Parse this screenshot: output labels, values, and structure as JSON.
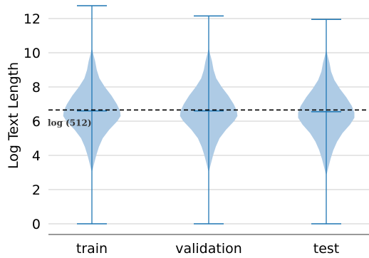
{
  "chart_data": {
    "type": "violin",
    "ylabel": "Log Text Length",
    "xlabel": "",
    "categories": [
      "train",
      "validation",
      "test"
    ],
    "ylim": [
      -0.55,
      13.0
    ],
    "yticks": [
      0,
      2,
      4,
      6,
      8,
      10,
      12
    ],
    "grid": "horizontal",
    "reference_line": {
      "value": 6.238,
      "label": "log (512)",
      "style": "dashed"
    },
    "series": [
      {
        "category": "train",
        "min": 0.0,
        "max": 12.75,
        "median": 6.6,
        "density": [
          [
            3.0,
            0.0
          ],
          [
            3.5,
            0.04
          ],
          [
            4.0,
            0.08
          ],
          [
            4.5,
            0.13
          ],
          [
            5.0,
            0.2
          ],
          [
            5.5,
            0.32
          ],
          [
            6.0,
            0.47
          ],
          [
            6.3,
            0.53
          ],
          [
            6.6,
            0.52
          ],
          [
            7.0,
            0.46
          ],
          [
            7.5,
            0.36
          ],
          [
            8.0,
            0.24
          ],
          [
            8.5,
            0.14
          ],
          [
            9.0,
            0.09
          ],
          [
            9.5,
            0.06
          ],
          [
            10.0,
            0.02
          ],
          [
            10.3,
            0.0
          ]
        ]
      },
      {
        "category": "validation",
        "min": 0.0,
        "max": 12.15,
        "median": 6.6,
        "density": [
          [
            3.0,
            0.0
          ],
          [
            3.5,
            0.04
          ],
          [
            4.0,
            0.08
          ],
          [
            4.5,
            0.13
          ],
          [
            5.0,
            0.2
          ],
          [
            5.5,
            0.32
          ],
          [
            6.0,
            0.47
          ],
          [
            6.3,
            0.53
          ],
          [
            6.6,
            0.52
          ],
          [
            7.0,
            0.46
          ],
          [
            7.5,
            0.36
          ],
          [
            8.0,
            0.24
          ],
          [
            8.5,
            0.14
          ],
          [
            9.0,
            0.09
          ],
          [
            9.5,
            0.06
          ],
          [
            10.0,
            0.02
          ],
          [
            10.3,
            0.0
          ]
        ]
      },
      {
        "category": "test",
        "min": 0.0,
        "max": 11.95,
        "median": 6.55,
        "density": [
          [
            2.8,
            0.0
          ],
          [
            3.3,
            0.04
          ],
          [
            3.8,
            0.08
          ],
          [
            4.3,
            0.13
          ],
          [
            4.8,
            0.2
          ],
          [
            5.3,
            0.3
          ],
          [
            5.8,
            0.44
          ],
          [
            6.2,
            0.52
          ],
          [
            6.5,
            0.52
          ],
          [
            6.9,
            0.47
          ],
          [
            7.4,
            0.37
          ],
          [
            7.9,
            0.25
          ],
          [
            8.4,
            0.15
          ],
          [
            8.9,
            0.09
          ],
          [
            9.4,
            0.06
          ],
          [
            9.9,
            0.02
          ],
          [
            10.2,
            0.0
          ]
        ]
      }
    ],
    "colors": {
      "violin_fill": "#aecbe5",
      "lines": "#1f77b4",
      "grid": "#cccccc",
      "reference": "#000000",
      "axis": "#333333"
    }
  }
}
